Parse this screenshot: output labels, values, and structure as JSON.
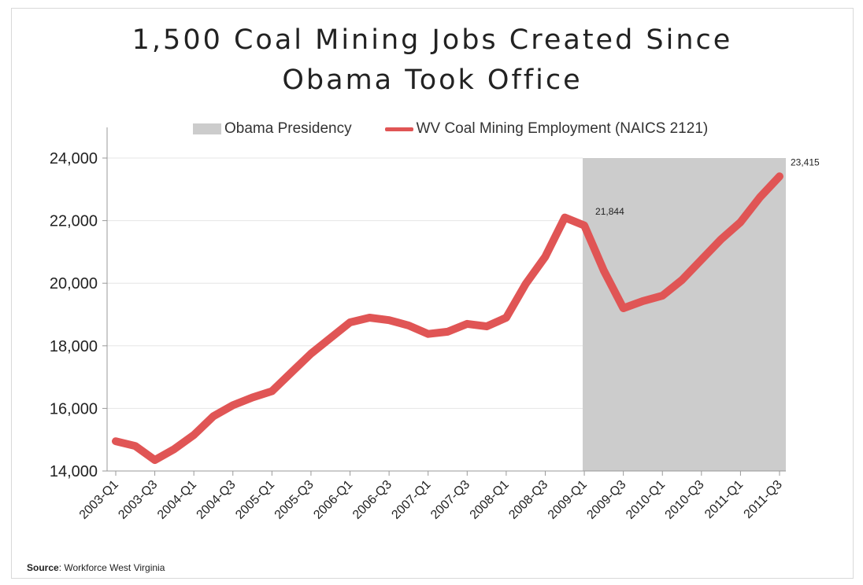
{
  "chart_data": {
    "type": "line",
    "title": "1,500 Coal Mining Jobs Created Since\nObama Took Office",
    "legend": [
      {
        "label": "Obama Presidency",
        "kind": "shaded-region",
        "color": "#cccccc"
      },
      {
        "label": "WV Coal Mining Employment (NAICS 2121)",
        "kind": "line",
        "color": "#e05555"
      }
    ],
    "legend_position": "top",
    "grid": true,
    "ylim": [
      14000,
      24000
    ],
    "y_ticks": [
      "14,000",
      "16,000",
      "18,000",
      "20,000",
      "22,000",
      "24,000"
    ],
    "y_tick_values": [
      14000,
      16000,
      18000,
      20000,
      22000,
      24000
    ],
    "x": [
      "2003-Q1",
      "2003-Q2",
      "2003-Q3",
      "2003-Q4",
      "2004-Q1",
      "2004-Q2",
      "2004-Q3",
      "2004-Q4",
      "2005-Q1",
      "2005-Q2",
      "2005-Q3",
      "2005-Q4",
      "2006-Q1",
      "2006-Q2",
      "2006-Q3",
      "2006-Q4",
      "2007-Q1",
      "2007-Q2",
      "2007-Q3",
      "2007-Q4",
      "2008-Q1",
      "2008-Q2",
      "2008-Q3",
      "2008-Q4",
      "2009-Q1",
      "2009-Q2",
      "2009-Q3",
      "2009-Q4",
      "2010-Q1",
      "2010-Q2",
      "2010-Q3",
      "2010-Q4",
      "2011-Q1",
      "2011-Q2",
      "2011-Q3"
    ],
    "x_tick_labels": [
      "2003-Q1",
      "2003-Q3",
      "2004-Q1",
      "2004-Q3",
      "2005-Q1",
      "2005-Q3",
      "2006-Q1",
      "2006-Q3",
      "2007-Q1",
      "2007-Q3",
      "2008-Q1",
      "2008-Q3",
      "2009-Q1",
      "2009-Q3",
      "2010-Q1",
      "2010-Q3",
      "2011-Q1",
      "2011-Q3"
    ],
    "series": [
      {
        "name": "WV Coal Mining Employment (NAICS 2121)",
        "color": "#e05555",
        "values": [
          14950,
          14800,
          14350,
          14700,
          15150,
          15750,
          16100,
          16350,
          16550,
          17150,
          17750,
          18250,
          18750,
          18900,
          18820,
          18650,
          18380,
          18450,
          18700,
          18620,
          18900,
          19980,
          20850,
          22100,
          21844,
          20400,
          19200,
          19430,
          19600,
          20100,
          20750,
          21400,
          21950,
          22750,
          23415
        ]
      }
    ],
    "shaded_region": {
      "label": "Obama Presidency",
      "from": "2009-Q1",
      "to": "2011-Q3"
    },
    "annotations": [
      {
        "x": "2009-Q1",
        "y": 21844,
        "text": "21,844"
      },
      {
        "x": "2011-Q3",
        "y": 23415,
        "text": "23,415"
      }
    ]
  },
  "source": {
    "label": "Source",
    "text": ": Workforce West Virginia"
  }
}
